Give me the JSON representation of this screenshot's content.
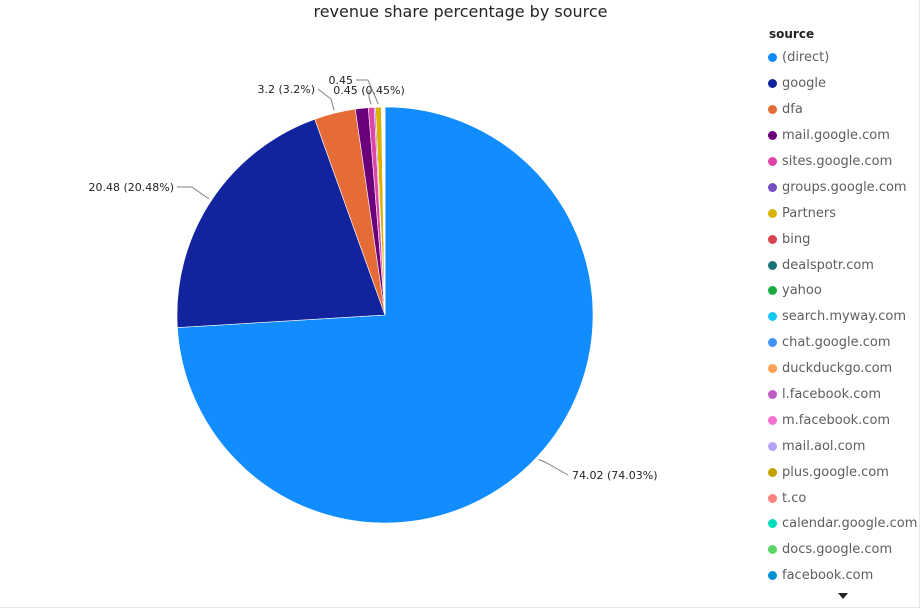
{
  "chart_data": {
    "type": "pie",
    "title": "revenue share percentage by source",
    "legend_title": "source",
    "legend_position": "right",
    "slices": [
      {
        "label": "(direct)",
        "value": 74.02,
        "percent_text": "74.03%",
        "color": "#118DFF",
        "data_label": "74.02 (74.03%)"
      },
      {
        "label": "google",
        "value": 20.48,
        "percent_text": "20.48%",
        "color": "#12239E",
        "data_label": "20.48 (20.48%)"
      },
      {
        "label": "dfa",
        "value": 3.2,
        "percent_text": "3.2%",
        "color": "#E66C37",
        "data_label": "3.2 (3.2%)"
      },
      {
        "label": "mail.google.com",
        "value": 1.0,
        "color": "#6B007B"
      },
      {
        "label": "sites.google.com",
        "value": 0.45,
        "percent_text": "0.45%",
        "color": "#E044A7",
        "data_label": "0.45 (0.45%)"
      },
      {
        "label": "groups.google.com",
        "value": 0.1,
        "color": "#744EC2"
      },
      {
        "label": "Partners",
        "value": 0.45,
        "color": "#D9B300",
        "data_label": "0.45"
      },
      {
        "label": "bing",
        "value": 0.05,
        "color": "#D64550"
      },
      {
        "label": "dealspotr.com",
        "value": 0.05,
        "color": "#197278"
      },
      {
        "label": "yahoo",
        "value": 0.03,
        "color": "#1AAB40"
      },
      {
        "label": "search.myway.com",
        "value": 0.02,
        "color": "#15C6F4"
      },
      {
        "label": "chat.google.com",
        "value": 0.02,
        "color": "#4092FF"
      },
      {
        "label": "duckduckgo.com",
        "value": 0.02,
        "color": "#FFA058"
      },
      {
        "label": "l.facebook.com",
        "value": 0.02,
        "color": "#BE5DC9"
      },
      {
        "label": "m.facebook.com",
        "value": 0.01,
        "color": "#F472D0"
      },
      {
        "label": "mail.aol.com",
        "value": 0.01,
        "color": "#B5A1FF"
      },
      {
        "label": "plus.google.com",
        "value": 0.01,
        "color": "#C4A200"
      },
      {
        "label": "t.co",
        "value": 0.01,
        "color": "#FF8080"
      },
      {
        "label": "calendar.google.com",
        "value": 0.01,
        "color": "#00DBBC"
      },
      {
        "label": "docs.google.com",
        "value": 0.01,
        "color": "#5BD667"
      },
      {
        "label": "facebook.com",
        "value": 0.01,
        "color": "#0091D5"
      }
    ]
  }
}
